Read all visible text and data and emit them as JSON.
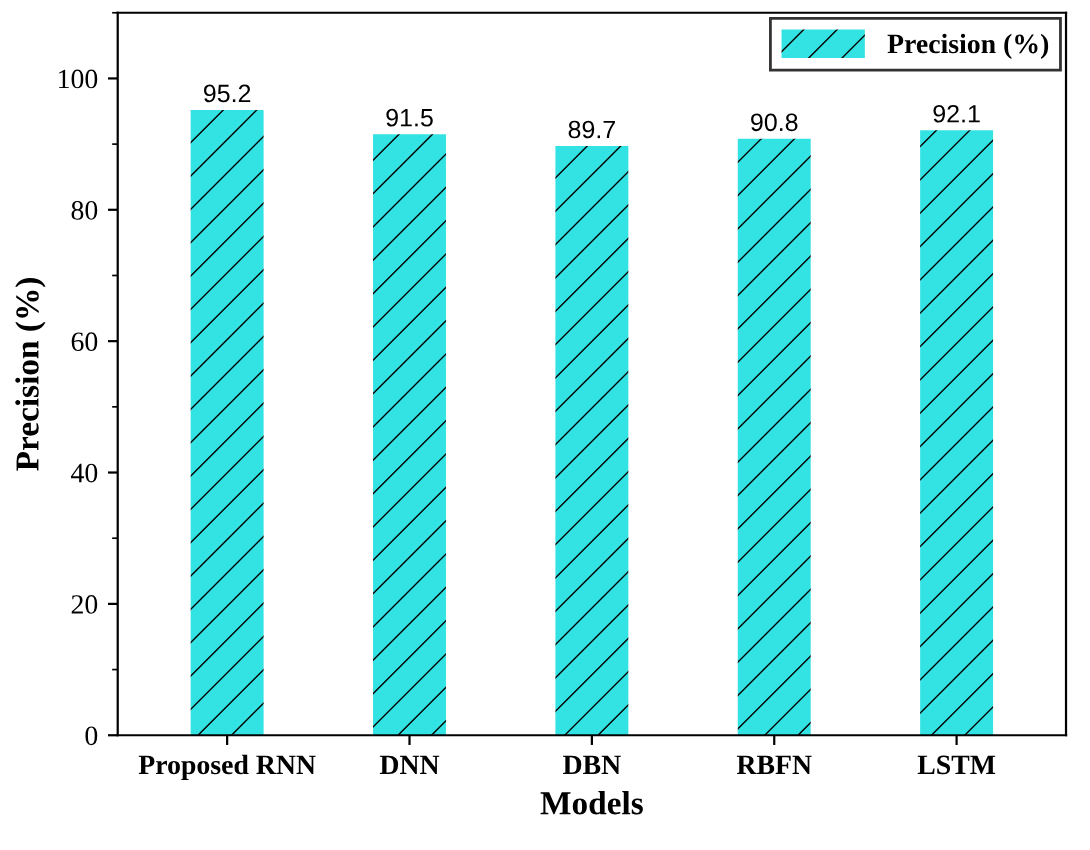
{
  "chart_data": {
    "type": "bar",
    "xlabel": "Models",
    "ylabel": "Precision (%)",
    "categories": [
      "Proposed RNN",
      "DNN",
      "DBN",
      "RBFN",
      "LSTM"
    ],
    "series": [
      {
        "name": "Precision (%)",
        "color": "#33e3e3",
        "values": [
          95.2,
          91.5,
          89.7,
          90.8,
          92.1
        ]
      }
    ],
    "ylim": [
      0,
      110
    ],
    "yticks": [
      0,
      20,
      40,
      60,
      80,
      100
    ],
    "data_labels": true,
    "legend": "top right",
    "grid": false
  }
}
